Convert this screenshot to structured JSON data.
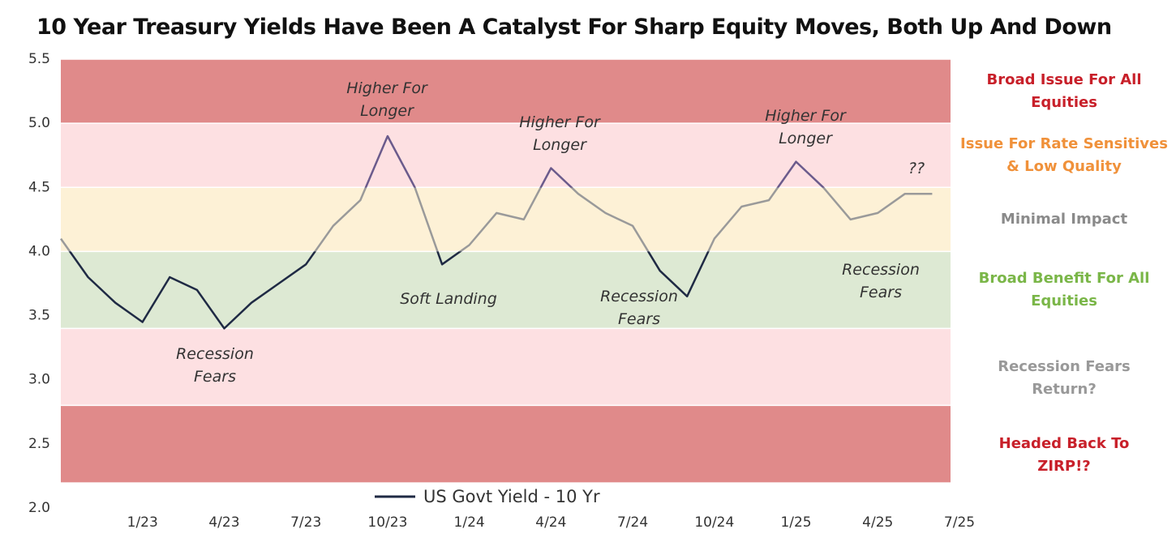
{
  "chart_data": {
    "type": "line",
    "title": "10 Year Treasury Yields Have Been A Catalyst For Sharp Equity Moves, Both Up And Down",
    "x": [
      "2022-10",
      "2022-11",
      "2022-12",
      "2023-01",
      "2023-02",
      "2023-03",
      "2023-04",
      "2023-05",
      "2023-06",
      "2023-07",
      "2023-08",
      "2023-09",
      "2023-10",
      "2023-11",
      "2023-12",
      "2024-01",
      "2024-02",
      "2024-03",
      "2024-04",
      "2024-05",
      "2024-06",
      "2024-07",
      "2024-08",
      "2024-09",
      "2024-10",
      "2024-11",
      "2024-12",
      "2025-01",
      "2025-02",
      "2025-03",
      "2025-04",
      "2025-05",
      "2025-06"
    ],
    "series": [
      {
        "name": "US Govt Yield - 10 Yr",
        "color": "#1f2a44",
        "values": [
          4.1,
          3.8,
          3.6,
          3.45,
          3.8,
          3.7,
          3.4,
          3.6,
          3.75,
          3.9,
          4.2,
          4.4,
          4.9,
          4.5,
          3.9,
          4.05,
          4.3,
          4.25,
          4.65,
          4.45,
          4.3,
          4.2,
          3.85,
          3.65,
          4.1,
          4.35,
          4.4,
          4.7,
          4.5,
          4.25,
          4.3,
          4.45,
          4.45
        ]
      }
    ],
    "xlim": [
      "2022-10",
      "2025-07"
    ],
    "xticks": [
      {
        "value": "2023-01",
        "label": "1/23"
      },
      {
        "value": "2023-04",
        "label": "4/23"
      },
      {
        "value": "2023-07",
        "label": "7/23"
      },
      {
        "value": "2023-10",
        "label": "10/23"
      },
      {
        "value": "2024-01",
        "label": "1/24"
      },
      {
        "value": "2024-04",
        "label": "4/24"
      },
      {
        "value": "2024-07",
        "label": "7/24"
      },
      {
        "value": "2024-10",
        "label": "10/24"
      },
      {
        "value": "2025-01",
        "label": "1/25"
      },
      {
        "value": "2025-04",
        "label": "4/25"
      },
      {
        "value": "2025-07",
        "label": "7/25"
      }
    ],
    "ylim": [
      2,
      5.5
    ],
    "yticks": [
      {
        "value": 2,
        "label": "2.0"
      },
      2.5,
      {
        "value": 3,
        "label": "3.0"
      },
      3.5,
      {
        "value": 4,
        "label": "4.0"
      },
      4.5,
      {
        "value": 5,
        "label": "5.0"
      },
      5.5
    ],
    "bands": [
      {
        "from": 5.0,
        "to": 5.5,
        "color": "#e08a8a",
        "line_color": "#6b5b8c",
        "label": "Broad Issue For All Equities",
        "label_color": "#c8202a"
      },
      {
        "from": 4.5,
        "to": 5.0,
        "color": "#fde0e2",
        "line_color": "#6b5b8c",
        "label": "Issue For Rate Sensitives & Low Quality",
        "label_color": "#f0913a"
      },
      {
        "from": 4.0,
        "to": 4.5,
        "color": "#fdf1d6",
        "line_color": "#9a9a9a",
        "label": "Minimal Impact",
        "label_color": "#8a8a8a"
      },
      {
        "from": 3.4,
        "to": 4.0,
        "color": "#dde9d3",
        "line_color": "#1f2a44",
        "label": "Broad Benefit For All Equities",
        "label_color": "#7ab648"
      },
      {
        "from": 2.8,
        "to": 3.4,
        "color": "#fde0e2",
        "line_color": "#1f2a44",
        "label": "Recession Fears Return?",
        "label_color": "#999999"
      },
      {
        "from": 2.2,
        "to": 2.8,
        "color": "#e08a8a",
        "line_color": "#1f2a44",
        "label": "Headed Back To ZIRP!?",
        "label_color": "#c8202a"
      }
    ],
    "annotations": [
      "Higher For Longer",
      "Higher For Longer",
      "Higher For Longer",
      "??",
      "Recession Fears",
      "Soft Landing",
      "Recession Fears",
      "Recession Fears"
    ]
  }
}
